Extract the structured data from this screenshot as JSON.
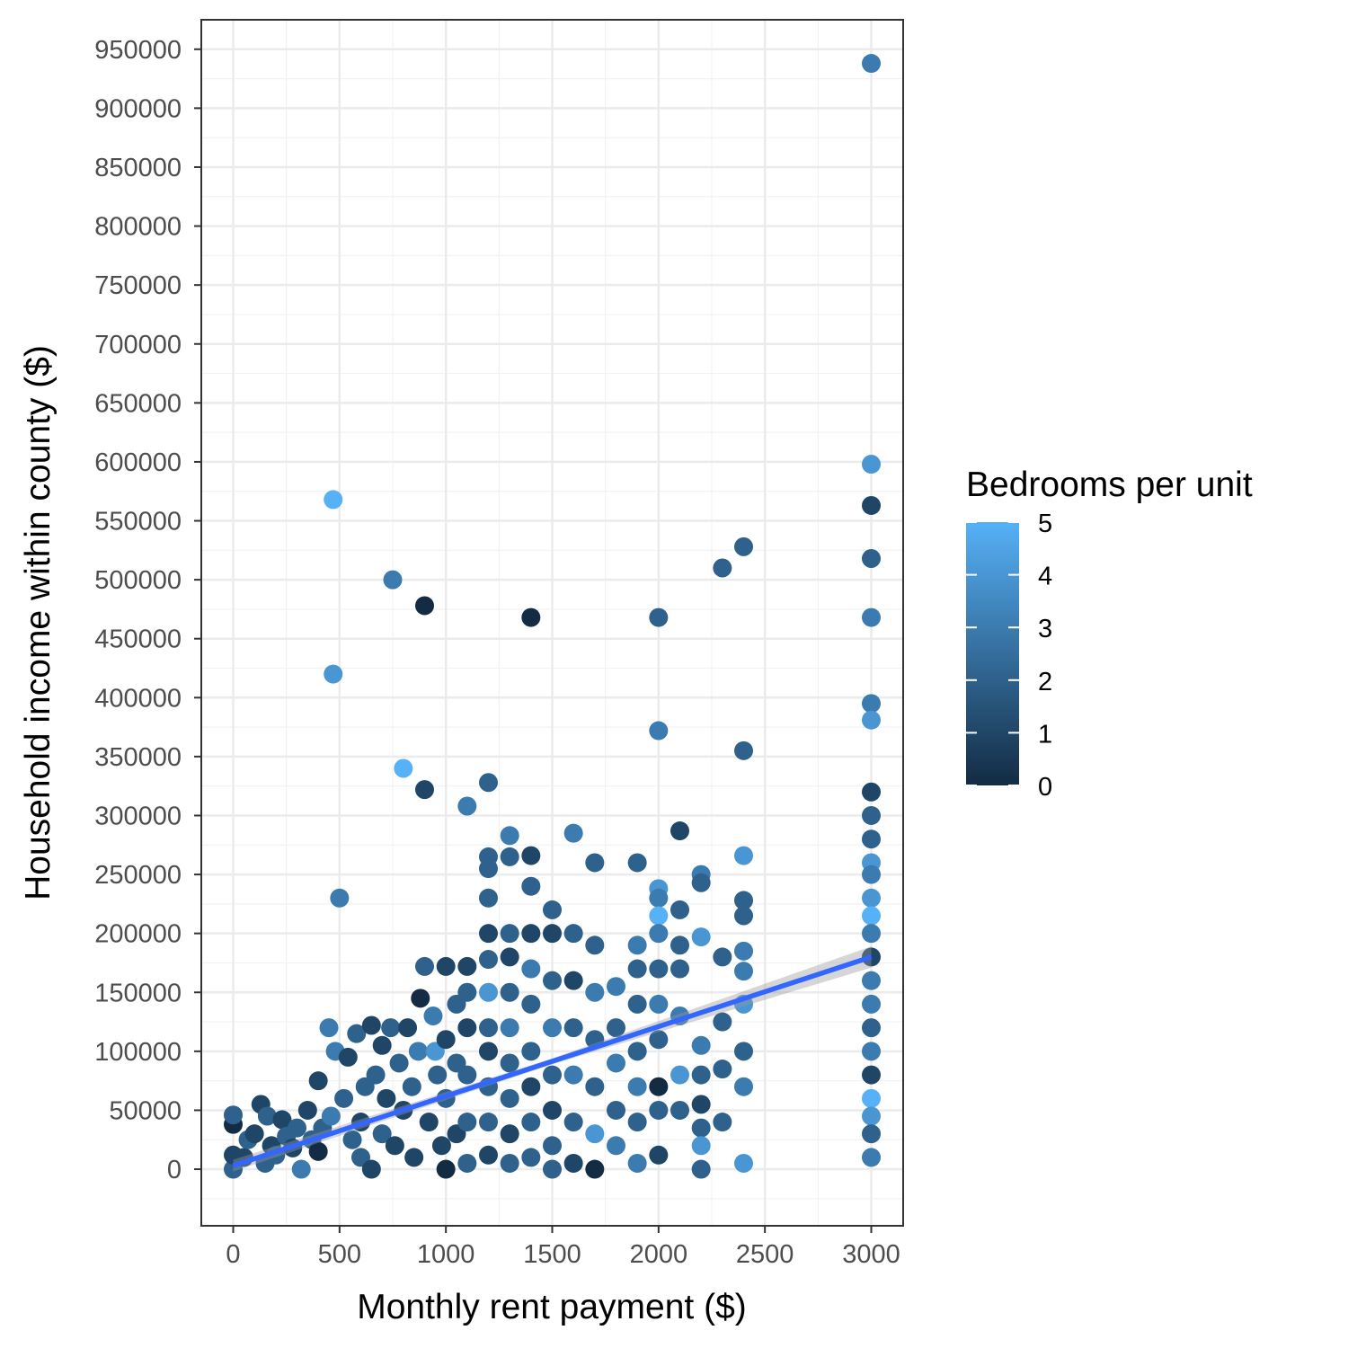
{
  "chart_data": {
    "type": "scatter",
    "xlabel": "Monthly rent payment ($)",
    "ylabel": "Household income within county ($)",
    "xlim": [
      -150,
      3150
    ],
    "ylim": [
      -48000,
      975000
    ],
    "x_ticks": [
      "0",
      "500",
      "1000",
      "1500",
      "2000",
      "2500",
      "3000"
    ],
    "y_ticks": [
      "0",
      "50000",
      "100000",
      "150000",
      "200000",
      "250000",
      "300000",
      "350000",
      "400000",
      "450000",
      "500000",
      "550000",
      "600000",
      "650000",
      "700000",
      "750000",
      "800000",
      "850000",
      "900000",
      "950000"
    ],
    "grid": true,
    "color_legend": {
      "title": "Bedrooms per unit",
      "min": 0,
      "max": 5,
      "low_color": "#132B43",
      "high_color": "#56B1F7",
      "labels": [
        "0",
        "1",
        "2",
        "3",
        "4",
        "5"
      ],
      "position": "right"
    },
    "trend_line": {
      "method": "linear",
      "color": "#3366FF",
      "start": [
        0,
        3000
      ],
      "end": [
        3000,
        180000
      ]
    },
    "points": [
      [
        0,
        0,
        2
      ],
      [
        0,
        12000,
        1
      ],
      [
        0,
        38000,
        0
      ],
      [
        0,
        46000,
        2
      ],
      [
        50,
        10000,
        1
      ],
      [
        70,
        25000,
        2
      ],
      [
        100,
        30000,
        1
      ],
      [
        130,
        55000,
        1
      ],
      [
        150,
        5000,
        2
      ],
      [
        160,
        45000,
        2
      ],
      [
        180,
        20000,
        1
      ],
      [
        200,
        12000,
        2
      ],
      [
        230,
        42000,
        1
      ],
      [
        250,
        28000,
        2
      ],
      [
        280,
        18000,
        1
      ],
      [
        300,
        35000,
        2
      ],
      [
        320,
        0,
        3
      ],
      [
        350,
        50000,
        1
      ],
      [
        370,
        25000,
        2
      ],
      [
        400,
        75000,
        1
      ],
      [
        400,
        15000,
        0
      ],
      [
        420,
        35000,
        2
      ],
      [
        450,
        120000,
        3
      ],
      [
        460,
        45000,
        3
      ],
      [
        470,
        420000,
        4
      ],
      [
        470,
        568000,
        5
      ],
      [
        480,
        100000,
        3
      ],
      [
        500,
        230000,
        3
      ],
      [
        520,
        60000,
        2
      ],
      [
        540,
        95000,
        1
      ],
      [
        560,
        25000,
        2
      ],
      [
        580,
        115000,
        2
      ],
      [
        600,
        40000,
        1
      ],
      [
        600,
        10000,
        2
      ],
      [
        620,
        70000,
        2
      ],
      [
        650,
        122000,
        1
      ],
      [
        650,
        0,
        1
      ],
      [
        670,
        80000,
        2
      ],
      [
        700,
        105000,
        1
      ],
      [
        700,
        30000,
        2
      ],
      [
        720,
        60000,
        1
      ],
      [
        740,
        120000,
        2
      ],
      [
        750,
        500000,
        3
      ],
      [
        760,
        20000,
        1
      ],
      [
        780,
        90000,
        2
      ],
      [
        800,
        340000,
        5
      ],
      [
        800,
        50000,
        1
      ],
      [
        820,
        120000,
        1
      ],
      [
        840,
        70000,
        2
      ],
      [
        850,
        10000,
        1
      ],
      [
        870,
        100000,
        3
      ],
      [
        880,
        145000,
        0
      ],
      [
        900,
        322000,
        1
      ],
      [
        900,
        478000,
        0
      ],
      [
        900,
        172000,
        2
      ],
      [
        920,
        40000,
        1
      ],
      [
        940,
        130000,
        3
      ],
      [
        950,
        100000,
        4
      ],
      [
        960,
        80000,
        2
      ],
      [
        980,
        20000,
        1
      ],
      [
        1000,
        172000,
        1
      ],
      [
        1000,
        110000,
        1
      ],
      [
        1000,
        60000,
        2
      ],
      [
        1000,
        0,
        0
      ],
      [
        1050,
        140000,
        2
      ],
      [
        1050,
        90000,
        2
      ],
      [
        1050,
        30000,
        1
      ],
      [
        1100,
        308000,
        3
      ],
      [
        1100,
        172000,
        1
      ],
      [
        1100,
        150000,
        2
      ],
      [
        1100,
        120000,
        1
      ],
      [
        1100,
        80000,
        2
      ],
      [
        1100,
        40000,
        2
      ],
      [
        1100,
        5000,
        2
      ],
      [
        1200,
        328000,
        2
      ],
      [
        1200,
        265000,
        2
      ],
      [
        1200,
        255000,
        2
      ],
      [
        1200,
        230000,
        2
      ],
      [
        1200,
        200000,
        1
      ],
      [
        1200,
        178000,
        2
      ],
      [
        1200,
        150000,
        4
      ],
      [
        1200,
        120000,
        2
      ],
      [
        1200,
        100000,
        1
      ],
      [
        1200,
        70000,
        2
      ],
      [
        1200,
        40000,
        2
      ],
      [
        1200,
        12000,
        1
      ],
      [
        1300,
        283000,
        3
      ],
      [
        1300,
        265000,
        2
      ],
      [
        1300,
        200000,
        2
      ],
      [
        1300,
        180000,
        1
      ],
      [
        1300,
        150000,
        2
      ],
      [
        1300,
        120000,
        3
      ],
      [
        1300,
        90000,
        2
      ],
      [
        1300,
        60000,
        2
      ],
      [
        1300,
        30000,
        1
      ],
      [
        1300,
        5000,
        2
      ],
      [
        1400,
        468000,
        0
      ],
      [
        1400,
        266000,
        1
      ],
      [
        1400,
        240000,
        2
      ],
      [
        1400,
        200000,
        1
      ],
      [
        1400,
        170000,
        3
      ],
      [
        1400,
        140000,
        2
      ],
      [
        1400,
        100000,
        2
      ],
      [
        1400,
        70000,
        1
      ],
      [
        1400,
        40000,
        2
      ],
      [
        1400,
        10000,
        2
      ],
      [
        1500,
        220000,
        2
      ],
      [
        1500,
        200000,
        1
      ],
      [
        1500,
        160000,
        2
      ],
      [
        1500,
        120000,
        3
      ],
      [
        1500,
        80000,
        2
      ],
      [
        1500,
        50000,
        1
      ],
      [
        1500,
        20000,
        2
      ],
      [
        1500,
        0,
        2
      ],
      [
        1600,
        285000,
        3
      ],
      [
        1600,
        200000,
        2
      ],
      [
        1600,
        160000,
        1
      ],
      [
        1600,
        120000,
        2
      ],
      [
        1600,
        80000,
        3
      ],
      [
        1600,
        40000,
        2
      ],
      [
        1600,
        5000,
        1
      ],
      [
        1700,
        260000,
        2
      ],
      [
        1700,
        190000,
        2
      ],
      [
        1700,
        150000,
        3
      ],
      [
        1700,
        110000,
        2
      ],
      [
        1700,
        70000,
        2
      ],
      [
        1700,
        30000,
        4
      ],
      [
        1700,
        0,
        0
      ],
      [
        1800,
        155000,
        3
      ],
      [
        1800,
        120000,
        2
      ],
      [
        1800,
        90000,
        3
      ],
      [
        1800,
        50000,
        2
      ],
      [
        1800,
        20000,
        3
      ],
      [
        1900,
        260000,
        2
      ],
      [
        1900,
        190000,
        3
      ],
      [
        1900,
        170000,
        2
      ],
      [
        1900,
        140000,
        2
      ],
      [
        1900,
        100000,
        2
      ],
      [
        1900,
        70000,
        3
      ],
      [
        1900,
        40000,
        2
      ],
      [
        1900,
        5000,
        3
      ],
      [
        2000,
        468000,
        2
      ],
      [
        2000,
        372000,
        3
      ],
      [
        2000,
        238000,
        4
      ],
      [
        2000,
        230000,
        3
      ],
      [
        2000,
        215000,
        5
      ],
      [
        2000,
        200000,
        3
      ],
      [
        2000,
        170000,
        2
      ],
      [
        2000,
        140000,
        3
      ],
      [
        2000,
        110000,
        2
      ],
      [
        2000,
        70000,
        0
      ],
      [
        2000,
        50000,
        2
      ],
      [
        2000,
        12000,
        1
      ],
      [
        2100,
        287000,
        1
      ],
      [
        2100,
        220000,
        2
      ],
      [
        2100,
        190000,
        2
      ],
      [
        2100,
        170000,
        2
      ],
      [
        2100,
        130000,
        3
      ],
      [
        2100,
        80000,
        4
      ],
      [
        2100,
        50000,
        2
      ],
      [
        2200,
        250000,
        3
      ],
      [
        2200,
        243000,
        2
      ],
      [
        2200,
        197000,
        4
      ],
      [
        2200,
        105000,
        3
      ],
      [
        2200,
        80000,
        2
      ],
      [
        2200,
        55000,
        1
      ],
      [
        2200,
        35000,
        2
      ],
      [
        2200,
        20000,
        4
      ],
      [
        2200,
        0,
        2
      ],
      [
        2300,
        510000,
        2
      ],
      [
        2300,
        180000,
        2
      ],
      [
        2300,
        125000,
        2
      ],
      [
        2300,
        85000,
        2
      ],
      [
        2300,
        40000,
        2
      ],
      [
        2400,
        528000,
        2
      ],
      [
        2400,
        355000,
        2
      ],
      [
        2400,
        266000,
        4
      ],
      [
        2400,
        228000,
        2
      ],
      [
        2400,
        215000,
        2
      ],
      [
        2400,
        185000,
        3
      ],
      [
        2400,
        168000,
        3
      ],
      [
        2400,
        140000,
        4
      ],
      [
        2400,
        100000,
        2
      ],
      [
        2400,
        70000,
        3
      ],
      [
        2400,
        5000,
        4
      ],
      [
        3000,
        938000,
        3
      ],
      [
        3000,
        598000,
        4
      ],
      [
        3000,
        563000,
        1
      ],
      [
        3000,
        518000,
        2
      ],
      [
        3000,
        468000,
        3
      ],
      [
        3000,
        395000,
        3
      ],
      [
        3000,
        381000,
        4
      ],
      [
        3000,
        320000,
        1
      ],
      [
        3000,
        300000,
        2
      ],
      [
        3000,
        280000,
        2
      ],
      [
        3000,
        260000,
        4
      ],
      [
        3000,
        250000,
        3
      ],
      [
        3000,
        230000,
        4
      ],
      [
        3000,
        215000,
        5
      ],
      [
        3000,
        200000,
        3
      ],
      [
        3000,
        180000,
        1
      ],
      [
        3000,
        160000,
        3
      ],
      [
        3000,
        140000,
        3
      ],
      [
        3000,
        120000,
        2
      ],
      [
        3000,
        100000,
        3
      ],
      [
        3000,
        80000,
        1
      ],
      [
        3000,
        60000,
        5
      ],
      [
        3000,
        45000,
        4
      ],
      [
        3000,
        30000,
        2
      ],
      [
        3000,
        10000,
        3
      ]
    ]
  }
}
